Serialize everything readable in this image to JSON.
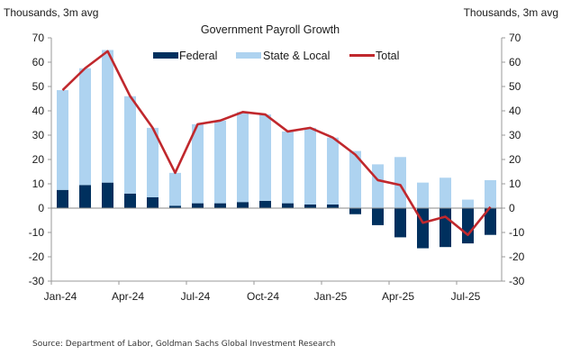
{
  "chart_data": {
    "type": "bar",
    "stacked": true,
    "title": "Government  Payroll Growth",
    "ylabel_left": "Thousands,  3m avg",
    "ylabel_right": "Thousands,  3m avg",
    "ylim": [
      -30,
      70
    ],
    "yticks": [
      70,
      60,
      50,
      40,
      30,
      20,
      10,
      0,
      -10,
      -20,
      -30
    ],
    "grid": false,
    "legend_position": "top-center",
    "categories": [
      "Jan-24",
      "Feb-24",
      "Mar-24",
      "Apr-24",
      "May-24",
      "Jun-24",
      "Jul-24",
      "Aug-24",
      "Sep-24",
      "Oct-24",
      "Nov-24",
      "Dec-24",
      "Jan-25",
      "Feb-25",
      "Mar-25",
      "Apr-25",
      "May-25",
      "Jun-25",
      "Jul-25",
      "Aug-25"
    ],
    "xtick_labels": [
      {
        "label": "Jan-24",
        "index": 0
      },
      {
        "label": "Apr-24",
        "index": 3
      },
      {
        "label": "Jul-24",
        "index": 6
      },
      {
        "label": "Oct-24",
        "index": 9
      },
      {
        "label": "Jan-25",
        "index": 12
      },
      {
        "label": "Apr-25",
        "index": 15
      },
      {
        "label": "Jul-25",
        "index": 18
      }
    ],
    "series": [
      {
        "name": "Federal",
        "kind": "bar",
        "color": "#00305e",
        "values": [
          7.5,
          9.5,
          10.5,
          6,
          4.5,
          1,
          2,
          2,
          2.5,
          3,
          2,
          1.5,
          1.5,
          -2.5,
          -7,
          -12,
          -16.5,
          -16,
          -14.5,
          -11
        ]
      },
      {
        "name": "State & Local",
        "kind": "bar",
        "color": "#aed3f0",
        "values": [
          41,
          48,
          54.5,
          40,
          28.5,
          13.5,
          32.5,
          34,
          37,
          35.5,
          29.5,
          31.5,
          27.5,
          23.5,
          18,
          21,
          10.5,
          12.5,
          3.5,
          11.5
        ]
      },
      {
        "name": "Total",
        "kind": "line",
        "color": "#c0282d",
        "values": [
          48.5,
          57.5,
          64.5,
          46,
          33,
          14.5,
          34.5,
          36,
          39.5,
          38.5,
          31.5,
          33,
          29,
          22,
          11.5,
          9.5,
          -6,
          -3.5,
          -11,
          0.5
        ]
      }
    ]
  },
  "source": "Source: Department of Labor, Goldman Sachs Global Investment Research"
}
